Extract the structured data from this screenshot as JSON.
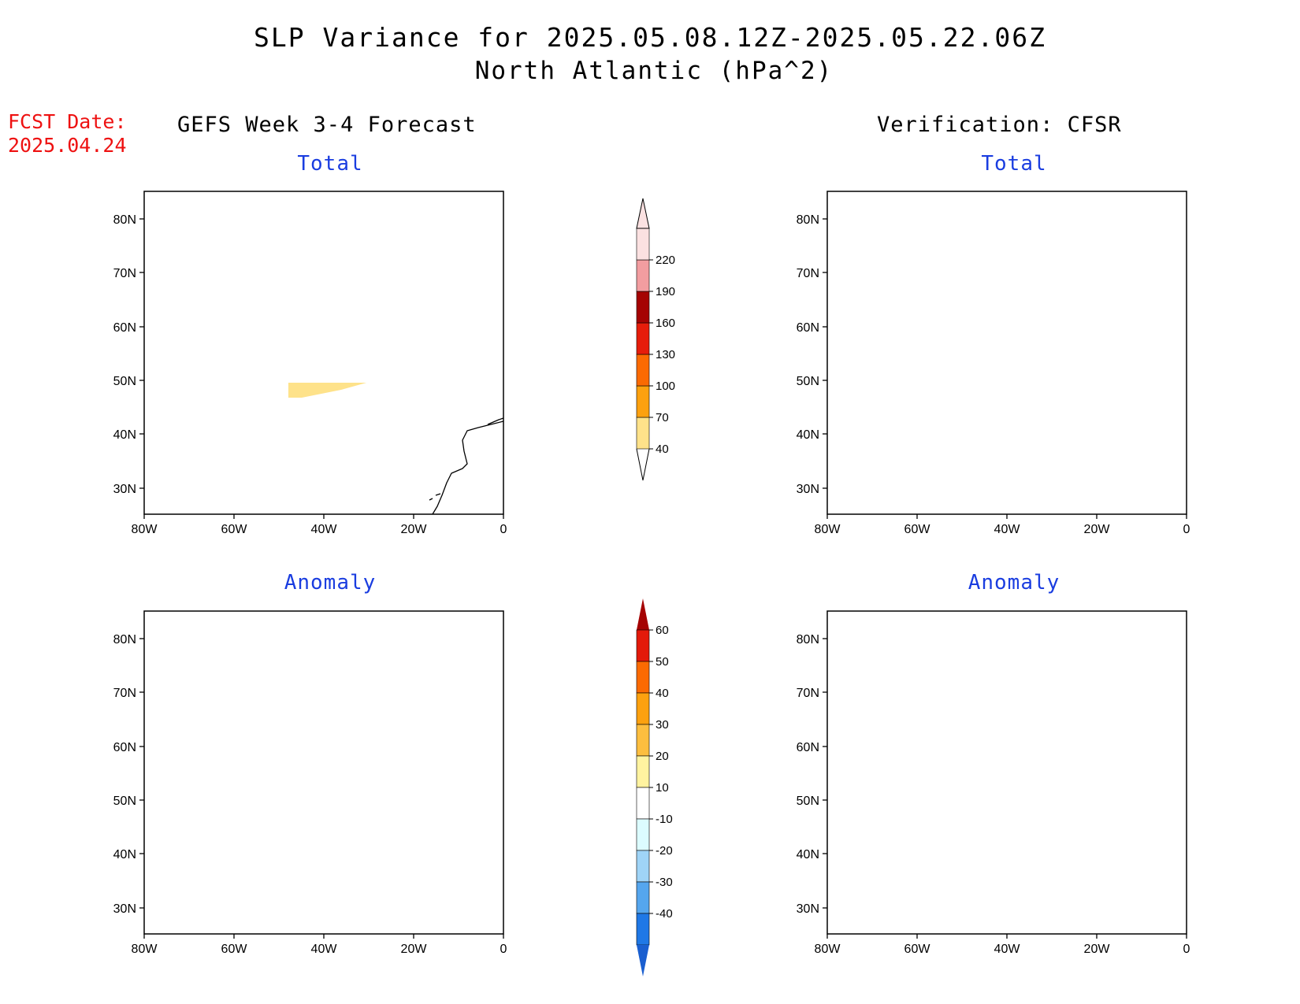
{
  "title": "SLP Variance for 2025.05.08.12Z-2025.05.22.06Z",
  "subtitle": "North Atlantic (hPa^2)",
  "fcst_label": "FCST Date:",
  "fcst_date": "2025.04.24",
  "left_column": "GEFS Week 3-4 Forecast",
  "right_column": "Verification: CFSR",
  "panels": {
    "top_left": "Total",
    "top_right": "Total",
    "bottom_left": "Anomaly",
    "bottom_right": "Anomaly"
  },
  "axes": {
    "lon_ticks": [
      "80W",
      "60W",
      "40W",
      "20W",
      "0"
    ],
    "lat_ticks": [
      "80N",
      "70N",
      "60N",
      "50N",
      "40N",
      "30N"
    ]
  },
  "total_colorbar": {
    "levels": [
      "40",
      "70",
      "100",
      "130",
      "160",
      "190",
      "220"
    ],
    "colors": [
      "#fee28a",
      "#fda10f",
      "#fb6a02",
      "#e61d0b",
      "#a50303",
      "#f29da0",
      "#fbe1e1"
    ]
  },
  "anomaly_colorbar": {
    "levels": [
      "60",
      "50",
      "40",
      "30",
      "20",
      "10",
      "-10",
      "-20",
      "-30",
      "-40"
    ],
    "colors_top_down": [
      "#a50303",
      "#e31a0a",
      "#fb6a02",
      "#fda10f",
      "#fdbe3f",
      "#fff3a0",
      "#ffffff",
      "#dcfcff",
      "#9fd4f7",
      "#55a6ee",
      "#1f78e6",
      "#1a5fd0"
    ]
  }
}
